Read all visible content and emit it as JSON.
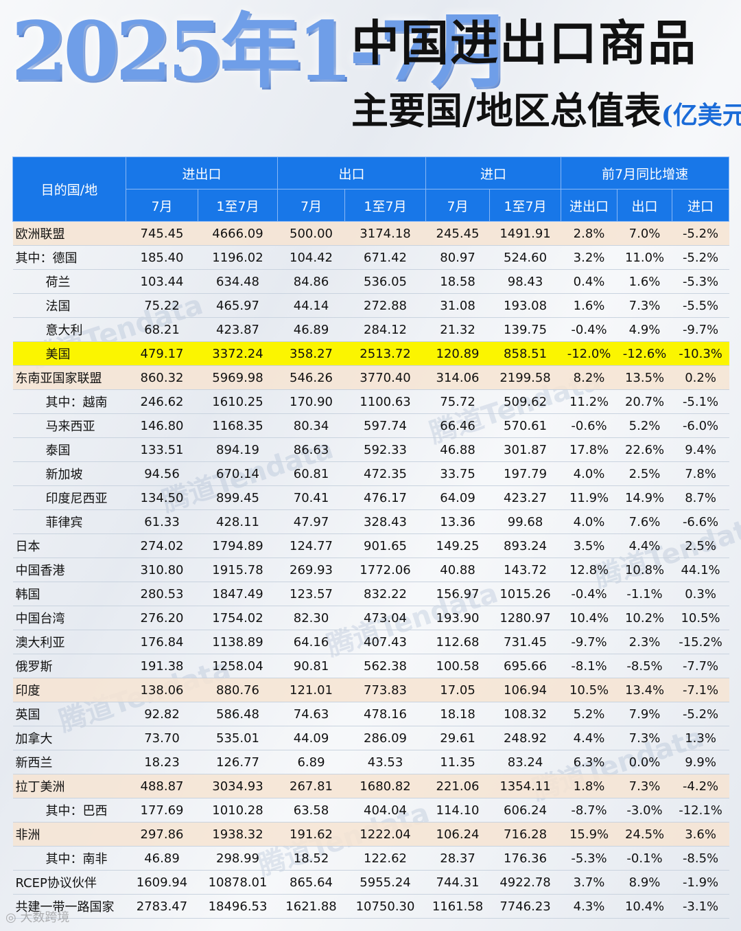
{
  "title": {
    "big": "2025年1-7月",
    "line1": "中国进出口商品",
    "line2": "主要国/地区总值表",
    "unit": "(亿美元)"
  },
  "headers": {
    "country": "目的国/地",
    "groups": [
      "进出口",
      "出口",
      "进口",
      "前7月同比增速"
    ],
    "sub": [
      "7月",
      "1至7月",
      "7月",
      "1至7月",
      "7月",
      "1至7月",
      "进出口",
      "出口",
      "进口"
    ]
  },
  "rows": [
    {
      "name": "欧洲联盟",
      "vals": [
        "745.45",
        "4666.09",
        "500.00",
        "3174.18",
        "245.45",
        "1491.91"
      ],
      "rates": [
        "2.8%",
        "7.0%",
        "-5.2%"
      ]
    },
    {
      "name": "其中：德国",
      "vals": [
        "185.40",
        "1196.02",
        "104.42",
        "671.42",
        "80.97",
        "524.60"
      ],
      "rates": [
        "3.2%",
        "11.0%",
        "-5.2%"
      ]
    },
    {
      "name": "荷兰",
      "vals": [
        "103.44",
        "634.48",
        "84.86",
        "536.05",
        "18.58",
        "98.43"
      ],
      "rates": [
        "0.4%",
        "1.6%",
        "-5.3%"
      ]
    },
    {
      "name": "法国",
      "vals": [
        "75.22",
        "465.97",
        "44.14",
        "272.88",
        "31.08",
        "193.08"
      ],
      "rates": [
        "1.6%",
        "7.3%",
        "-5.5%"
      ]
    },
    {
      "name": "意大利",
      "vals": [
        "68.21",
        "423.87",
        "46.89",
        "284.12",
        "21.32",
        "139.75"
      ],
      "rates": [
        "-0.4%",
        "4.9%",
        "-9.7%"
      ]
    },
    {
      "name": "美国",
      "vals": [
        "479.17",
        "3372.24",
        "358.27",
        "2513.72",
        "120.89",
        "858.51"
      ],
      "rates": [
        "-12.0%",
        "-12.6%",
        "-10.3%"
      ]
    },
    {
      "name": "东南亚国家联盟",
      "vals": [
        "860.32",
        "5969.98",
        "546.26",
        "3770.40",
        "314.06",
        "2199.58"
      ],
      "rates": [
        "8.2%",
        "13.5%",
        "0.2%"
      ]
    },
    {
      "name": "其中：越南",
      "vals": [
        "246.62",
        "1610.25",
        "170.90",
        "1100.63",
        "75.72",
        "509.62"
      ],
      "rates": [
        "11.2%",
        "20.7%",
        "-5.1%"
      ]
    },
    {
      "name": "马来西亚",
      "vals": [
        "146.80",
        "1168.35",
        "80.34",
        "597.74",
        "66.46",
        "570.61"
      ],
      "rates": [
        "-0.6%",
        "5.2%",
        "-6.0%"
      ]
    },
    {
      "name": "泰国",
      "vals": [
        "133.51",
        "894.19",
        "86.63",
        "592.33",
        "46.88",
        "301.87"
      ],
      "rates": [
        "17.8%",
        "22.6%",
        "9.4%"
      ]
    },
    {
      "name": "新加坡",
      "vals": [
        "94.56",
        "670.14",
        "60.81",
        "472.35",
        "33.75",
        "197.79"
      ],
      "rates": [
        "4.0%",
        "2.5%",
        "7.8%"
      ]
    },
    {
      "name": "印度尼西亚",
      "vals": [
        "134.50",
        "899.45",
        "70.41",
        "476.17",
        "64.09",
        "423.27"
      ],
      "rates": [
        "11.9%",
        "14.9%",
        "8.7%"
      ]
    },
    {
      "name": "菲律宾",
      "vals": [
        "61.33",
        "428.11",
        "47.97",
        "328.43",
        "13.36",
        "99.68"
      ],
      "rates": [
        "4.0%",
        "7.6%",
        "-6.6%"
      ]
    },
    {
      "name": "日本",
      "vals": [
        "274.02",
        "1794.89",
        "124.77",
        "901.65",
        "149.25",
        "893.24"
      ],
      "rates": [
        "3.5%",
        "4.4%",
        "2.5%"
      ]
    },
    {
      "name": "中国香港",
      "vals": [
        "310.80",
        "1915.78",
        "269.93",
        "1772.06",
        "40.88",
        "143.72"
      ],
      "rates": [
        "12.8%",
        "10.8%",
        "44.1%"
      ]
    },
    {
      "name": "韩国",
      "vals": [
        "280.53",
        "1847.49",
        "123.57",
        "832.22",
        "156.97",
        "1015.26"
      ],
      "rates": [
        "-0.4%",
        "-1.1%",
        "0.3%"
      ]
    },
    {
      "name": "中国台湾",
      "vals": [
        "276.20",
        "1754.02",
        "82.30",
        "473.04",
        "193.90",
        "1280.97"
      ],
      "rates": [
        "10.4%",
        "10.2%",
        "10.5%"
      ]
    },
    {
      "name": "澳大利亚",
      "vals": [
        "176.84",
        "1138.89",
        "64.16",
        "407.43",
        "112.68",
        "731.45"
      ],
      "rates": [
        "-9.7%",
        "2.3%",
        "-15.2%"
      ]
    },
    {
      "name": "俄罗斯",
      "vals": [
        "191.38",
        "1258.04",
        "90.81",
        "562.38",
        "100.58",
        "695.66"
      ],
      "rates": [
        "-8.1%",
        "-8.5%",
        "-7.7%"
      ]
    },
    {
      "name": "印度",
      "vals": [
        "138.06",
        "880.76",
        "121.01",
        "773.83",
        "17.05",
        "106.94"
      ],
      "rates": [
        "10.5%",
        "13.4%",
        "-7.1%"
      ]
    },
    {
      "name": "英国",
      "vals": [
        "92.82",
        "586.48",
        "74.63",
        "478.16",
        "18.18",
        "108.32"
      ],
      "rates": [
        "5.2%",
        "7.9%",
        "-5.2%"
      ]
    },
    {
      "name": "加拿大",
      "vals": [
        "73.70",
        "535.01",
        "44.09",
        "286.09",
        "29.61",
        "248.92"
      ],
      "rates": [
        "4.4%",
        "7.3%",
        "1.3%"
      ]
    },
    {
      "name": "新西兰",
      "vals": [
        "18.23",
        "126.77",
        "6.89",
        "43.53",
        "11.35",
        "83.24"
      ],
      "rates": [
        "6.3%",
        "0.0%",
        "9.9%"
      ]
    },
    {
      "name": "拉丁美洲",
      "vals": [
        "488.87",
        "3034.93",
        "267.81",
        "1680.82",
        "221.06",
        "1354.11"
      ],
      "rates": [
        "1.8%",
        "7.3%",
        "-4.2%"
      ]
    },
    {
      "name": "其中：巴西",
      "vals": [
        "177.69",
        "1010.28",
        "63.58",
        "404.04",
        "114.10",
        "606.24"
      ],
      "rates": [
        "-8.7%",
        "-3.0%",
        "-12.1%"
      ]
    },
    {
      "name": "非洲",
      "vals": [
        "297.86",
        "1938.32",
        "191.62",
        "1222.04",
        "106.24",
        "716.28"
      ],
      "rates": [
        "15.9%",
        "24.5%",
        "3.6%"
      ]
    },
    {
      "name": "其中：南非",
      "vals": [
        "46.89",
        "298.99",
        "18.52",
        "122.62",
        "28.37",
        "176.36"
      ],
      "rates": [
        "-5.3%",
        "-0.1%",
        "-8.5%"
      ]
    },
    {
      "name": "RCEP协议伙伴",
      "vals": [
        "1609.94",
        "10878.01",
        "865.64",
        "5955.24",
        "744.31",
        "4922.78"
      ],
      "rates": [
        "3.7%",
        "8.9%",
        "-1.9%"
      ]
    },
    {
      "name": "共建一带一路国家",
      "vals": [
        "2783.47",
        "18496.53",
        "1621.88",
        "10750.30",
        "1161.58",
        "7746.23"
      ],
      "rates": [
        "4.3%",
        "10.4%",
        "-3.1%"
      ]
    }
  ],
  "watermark": "腾道Tendata",
  "footer": "大数跨境"
}
